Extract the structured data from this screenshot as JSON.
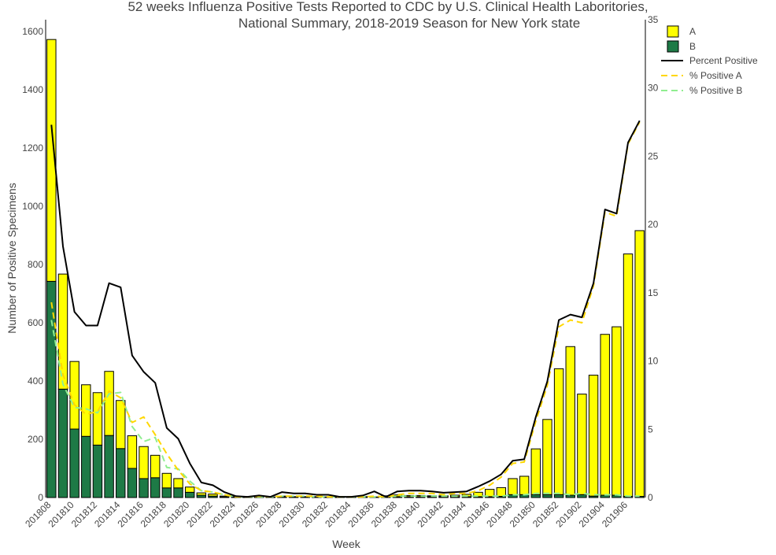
{
  "chart_data": {
    "type": "bar",
    "title_lines": [
      "52 weeks Influenza Positive Tests Reported to CDC by U.S. Clinical Health Laboritories,",
      "National Summary, 2018-2019 Season for New York state"
    ],
    "xlabel": "Week",
    "ylabel": "Number of Positive Specimens",
    "ylim": [
      0,
      1640
    ],
    "y2lim": [
      0,
      35
    ],
    "yticks": [
      0,
      200,
      400,
      600,
      800,
      1000,
      1200,
      1400,
      1600
    ],
    "y2ticks": [
      0,
      5,
      10,
      15,
      20,
      25,
      30,
      35
    ],
    "barmode": "stack",
    "legend_position": "top-right",
    "colors": {
      "A": "#ffff00",
      "B": "#1e7a46",
      "outline": "#000000",
      "percent_positive": "#000000",
      "pct_a": "#ffd700",
      "pct_b": "#90ee90"
    },
    "categories": [
      "201808",
      "201809",
      "201810",
      "201811",
      "201812",
      "201813",
      "201814",
      "201815",
      "201816",
      "201817",
      "201818",
      "201819",
      "201820",
      "201821",
      "201822",
      "201823",
      "201824",
      "201825",
      "201826",
      "201827",
      "201828",
      "201829",
      "201830",
      "201831",
      "201832",
      "201833",
      "201834",
      "201835",
      "201836",
      "201837",
      "201838",
      "201839",
      "201840",
      "201841",
      "201842",
      "201843",
      "201844",
      "201845",
      "201846",
      "201847",
      "201848",
      "201849",
      "201850",
      "201851",
      "201852",
      "201901",
      "201902",
      "201903",
      "201904",
      "201905",
      "201906",
      "201907"
    ],
    "series": [
      {
        "name": "A",
        "kind": "bar",
        "values": [
          830,
          395,
          232,
          177,
          180,
          220,
          165,
          112,
          110,
          77,
          50,
          32,
          18,
          8,
          7,
          3,
          2,
          1,
          2,
          1,
          3,
          2,
          2,
          2,
          1,
          1,
          1,
          2,
          1,
          4,
          6,
          4,
          4,
          3,
          3,
          5,
          8,
          15,
          25,
          30,
          55,
          63,
          157,
          258,
          432,
          510,
          345,
          415,
          552,
          578,
          832,
          912
        ]
      },
      {
        "name": "B",
        "kind": "bar",
        "values": [
          742,
          372,
          235,
          210,
          180,
          213,
          168,
          100,
          65,
          68,
          33,
          33,
          18,
          8,
          5,
          2,
          1,
          1,
          1,
          1,
          2,
          1,
          1,
          1,
          1,
          1,
          1,
          1,
          1,
          2,
          3,
          3,
          3,
          3,
          3,
          3,
          3,
          3,
          3,
          4,
          10,
          10,
          10,
          10,
          10,
          8,
          10,
          5,
          8,
          8,
          4,
          4
        ]
      },
      {
        "name": "Percent Positive",
        "kind": "line",
        "axis": "y2",
        "values": [
          27.3,
          18.4,
          13.6,
          12.6,
          12.6,
          15.7,
          15.4,
          10.4,
          9.2,
          8.4,
          5.1,
          4.3,
          2.5,
          1.1,
          0.9,
          0.4,
          0.1,
          0.05,
          0.15,
          0.05,
          0.4,
          0.3,
          0.3,
          0.2,
          0.2,
          0.05,
          0.05,
          0.15,
          0.45,
          0.05,
          0.45,
          0.5,
          0.5,
          0.45,
          0.35,
          0.4,
          0.45,
          0.8,
          1.2,
          1.7,
          2.7,
          2.8,
          5.9,
          8.5,
          13.0,
          13.4,
          13.2,
          15.7,
          21.1,
          20.8,
          26.0,
          27.6
        ]
      },
      {
        "name": "% Positive A",
        "kind": "line",
        "axis": "y2",
        "dash": "dash",
        "values": [
          14.3,
          9.0,
          6.8,
          6.1,
          6.3,
          7.8,
          7.3,
          5.5,
          5.9,
          4.6,
          3.2,
          2.0,
          1.0,
          0.5,
          0.4,
          0.2,
          0.05,
          0.05,
          0.1,
          0.05,
          0.1,
          0.1,
          0.1,
          0.1,
          0.05,
          0.05,
          0.05,
          0.05,
          0.1,
          0.05,
          0.2,
          0.3,
          0.3,
          0.3,
          0.2,
          0.3,
          0.3,
          0.5,
          0.9,
          1.5,
          2.5,
          2.6,
          5.6,
          8.2,
          12.5,
          13.0,
          12.8,
          15.5,
          20.9,
          20.6,
          25.9,
          27.5
        ]
      },
      {
        "name": "% Positive B",
        "kind": "line",
        "axis": "y2",
        "dash": "dash",
        "values": [
          13.0,
          8.3,
          6.6,
          6.5,
          6.2,
          7.6,
          7.7,
          5.2,
          4.1,
          4.4,
          2.2,
          2.1,
          1.2,
          0.5,
          0.4,
          0.2,
          0.05,
          0.05,
          0.05,
          0.05,
          0.1,
          0.1,
          0.1,
          0.05,
          0.05,
          0.05,
          0.05,
          0.05,
          0.05,
          0.05,
          0.1,
          0.1,
          0.1,
          0.1,
          0.1,
          0.1,
          0.1,
          0.1,
          0.1,
          0.1,
          0.2,
          0.2,
          0.3,
          0.3,
          0.3,
          0.2,
          0.3,
          0.2,
          0.2,
          0.2,
          0.1,
          0.1
        ]
      }
    ]
  }
}
